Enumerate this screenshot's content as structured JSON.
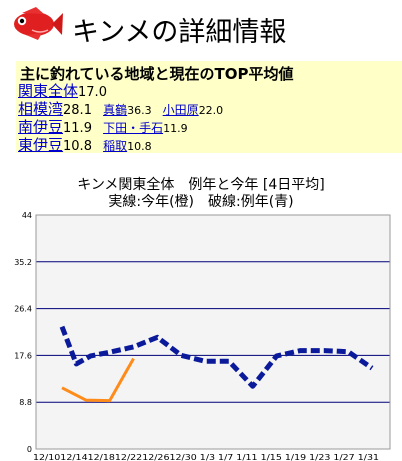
{
  "page": {
    "title": "キンメの詳細情報",
    "fish_icon": "red-fish-icon"
  },
  "summary": {
    "heading": "主に釣れている地域と現在のTOP平均値",
    "rows": [
      {
        "label": "関東全体",
        "value": "17.0",
        "subs": []
      },
      {
        "label": "相模湾",
        "value": "28.1",
        "subs": [
          {
            "label": "真鶴",
            "value": "36.3"
          },
          {
            "label": "小田原",
            "value": "22.0"
          }
        ]
      },
      {
        "label": "南伊豆",
        "value": "11.9",
        "subs": [
          {
            "label": "下田・手石",
            "value": "11.9"
          }
        ]
      },
      {
        "label": "東伊豆",
        "value": "10.8",
        "subs": [
          {
            "label": "稲取",
            "value": "10.8"
          }
        ]
      }
    ]
  },
  "chart": {
    "title": "キンメ関東全体　例年と今年 [4日平均]",
    "subtitle": "実線:今年(橙)　破線:例年(青)"
  },
  "chart_data": {
    "type": "line",
    "ylim": [
      0,
      44
    ],
    "y_ticks": [
      "0",
      "8.8",
      "17.6",
      "26.4",
      "35.2",
      "44"
    ],
    "categories": [
      "12/10",
      "12/14",
      "12/18",
      "12/22",
      "12/26",
      "12/30",
      "1/3",
      "1/7",
      "1/11",
      "1/15",
      "1/19",
      "1/23",
      "1/27",
      "1/31"
    ],
    "x_tick_text": "12/1012/1412/1812/2212/2612/30   1/3    1/7    1/11   1/15   1/19   1/23   1/27   1/31",
    "series": [
      {
        "style": "solid",
        "color": "#ff8c1a",
        "points": [
          [
            0,
            11.5
          ],
          [
            1,
            9.2
          ],
          [
            2,
            9.1
          ],
          [
            3,
            17.0
          ]
        ]
      },
      {
        "style": "dashed",
        "color": "#0a1a9a",
        "points": [
          [
            0,
            23.0
          ],
          [
            0.6,
            16.0
          ],
          [
            1.2,
            17.5
          ],
          [
            2,
            18.2
          ],
          [
            3,
            19.2
          ],
          [
            4,
            21.0
          ],
          [
            5,
            17.6
          ],
          [
            6,
            16.5
          ],
          [
            7,
            16.5
          ],
          [
            8,
            11.8
          ],
          [
            9,
            17.5
          ],
          [
            10,
            18.5
          ],
          [
            11,
            18.5
          ],
          [
            12,
            18.3
          ],
          [
            13,
            15.2
          ]
        ]
      }
    ],
    "colors": {
      "grid": "#00007a",
      "plot_bg": "#f4f4f4",
      "summary_bg": "#ffffc8",
      "link": "#0000cc"
    }
  }
}
